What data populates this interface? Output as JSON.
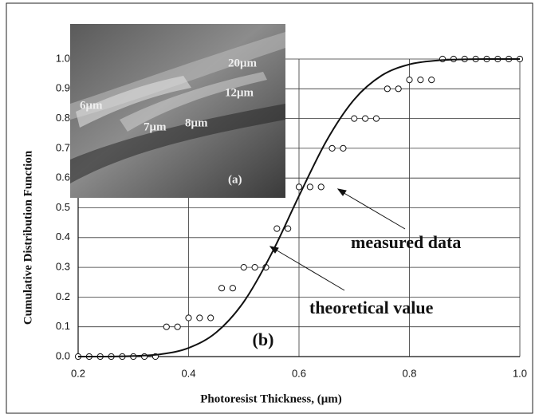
{
  "chart_data": {
    "type": "scatter",
    "x_label": "Photoresist Thickness, (μm)",
    "y_label": "Cumulative Distribution Function",
    "xlim": [
      0.2,
      1.0
    ],
    "ylim": [
      0,
      1.0
    ],
    "xticks": [
      0.2,
      0.4,
      0.6,
      0.8,
      {
        "value": 1.0,
        "label": "1.0"
      }
    ],
    "yticks": [
      {
        "value": 0,
        "label": "0.0"
      },
      0.1,
      0.2,
      0.3,
      0.4,
      0.5,
      0.6,
      0.7,
      0.8,
      0.9,
      {
        "value": 1.0,
        "label": "1.0"
      }
    ],
    "grid": true,
    "series": [
      {
        "name": "measured data",
        "style": "markers",
        "color": "#111111",
        "x": [
          0.2,
          0.22,
          0.24,
          0.26,
          0.28,
          0.3,
          0.32,
          0.34,
          0.36,
          0.38,
          0.4,
          0.42,
          0.44,
          0.46,
          0.48,
          0.5,
          0.52,
          0.54,
          0.56,
          0.58,
          0.6,
          0.62,
          0.64,
          0.66,
          0.68,
          0.7,
          0.72,
          0.74,
          0.76,
          0.78,
          0.8,
          0.82,
          0.84,
          0.86,
          0.88,
          0.9,
          0.92,
          0.94,
          0.96,
          0.98,
          1.0
        ],
        "values": [
          0,
          0,
          0,
          0,
          0,
          0,
          0,
          0,
          0.1,
          0.1,
          0.13,
          0.13,
          0.13,
          0.23,
          0.23,
          0.3,
          0.3,
          0.3,
          0.43,
          0.43,
          0.57,
          0.57,
          0.57,
          0.7,
          0.7,
          0.8,
          0.8,
          0.8,
          0.9,
          0.9,
          0.93,
          0.93,
          0.93,
          1.0,
          1.0,
          1.0,
          1.0,
          1.0,
          1.0,
          1.0,
          1.0
        ]
      },
      {
        "name": "theoretical value",
        "style": "line",
        "color": "#111111",
        "x": [
          0.2,
          0.25,
          0.3,
          0.35,
          0.4,
          0.45,
          0.5,
          0.55,
          0.6,
          0.65,
          0.7,
          0.75,
          0.8,
          0.85,
          0.9,
          0.95,
          1.0
        ],
        "values": [
          0,
          0,
          0.002,
          0.008,
          0.029,
          0.081,
          0.184,
          0.345,
          0.54,
          0.726,
          0.864,
          0.945,
          0.982,
          0.995,
          0.999,
          1.0,
          1.0
        ]
      }
    ],
    "panel_label": "(b)",
    "inset": {
      "labels": [
        "20μm",
        "12μm",
        "8μm",
        "7μm",
        "6μm"
      ],
      "panel_label": "(a)"
    }
  }
}
